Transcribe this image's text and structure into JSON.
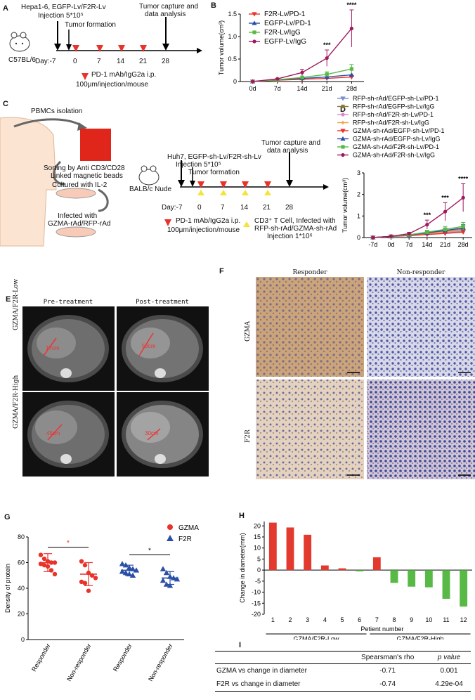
{
  "panelA": {
    "letter": "A",
    "mouse": "C57BL/6",
    "injection_l1": "Hepa1-6, EGFP-Lv/F2R-Lv",
    "injection_l2": "Injection 5*10⁵",
    "tumor_formation": "Tumor formation",
    "capture_l1": "Tumor capture and",
    "capture_l2": "data analysis",
    "day_label": "Day:-7",
    "days": [
      "0",
      "7",
      "14",
      "21",
      "28"
    ],
    "treat_l1": "PD-1 mAb/IgG2a i.p.",
    "treat_l2": "100μm/injection/mouse"
  },
  "panelC": {
    "letter": "C",
    "pbmc": "PBMCs isolation",
    "sort_l1": "Sorting by Anti CD3/CD28",
    "sort_l2": "Linked magnetic beads",
    "cultured": "Cultured with IL-2",
    "infected_l1": "Infected with",
    "infected_l2": "GZMA-rAd/RFP-rAd",
    "mouse": "BALB/c Nude",
    "injection_l1": "Huh7, EGFP-sh-Lv/F2R-sh-Lv",
    "injection_l2": "Injection 5*10⁵",
    "tumor_formation": "Tumor formation",
    "capture_l1": "Tumor capture and",
    "capture_l2": "data analysis",
    "day_label": "Day:-7",
    "days": [
      "0",
      "7",
      "14",
      "21",
      "28"
    ],
    "treat_l1": "PD-1 mAb/IgG2a i.p.",
    "treat_l2": "100μm/injection/mouse",
    "cd3_l1": "CD3⁺ T Cell, Infected with",
    "cd3_l2": "RFP-sh-rAd/GZMA-sh-rAd",
    "cd3_l3": "Injection 1*10⁶"
  },
  "panelE": {
    "letter": "E",
    "pre": "Pre-treatment",
    "post": "Post-treatment",
    "row1": "GZMA/F2R-Low",
    "row2": "GZMA/F2R-High",
    "m1": "17cm",
    "m2": "53cm",
    "m3": "45cm",
    "m4": "30cm"
  },
  "panelF": {
    "letter": "F",
    "col1": "Responder",
    "col2": "Non-responder",
    "row1": "GZMA",
    "row2": "F2R"
  },
  "panelI": {
    "letter": "I",
    "headers": [
      "",
      "Spearsman's rho",
      "p value"
    ],
    "rows": [
      [
        "GZMA vs change in diameter",
        "-0.71",
        "0.001"
      ],
      [
        "F2R vs change in diameter",
        "-0.74",
        "4.29e-04"
      ]
    ]
  },
  "chart_data": [
    {
      "panel": "B",
      "type": "line",
      "x": [
        "0d",
        "7d",
        "14d",
        "21d",
        "28d"
      ],
      "ylabel": "Tumor volume(cm³)",
      "ylim": [
        0,
        1.5
      ],
      "yticks": [
        "0",
        "0.5",
        "1.0",
        "1.5"
      ],
      "legend_position": "top-left",
      "series": [
        {
          "name": "F2R-Lv/PD-1",
          "color": "#e8322a",
          "marker": "triangle-down",
          "values": [
            0,
            0.03,
            0.05,
            0.07,
            0.1
          ]
        },
        {
          "name": "EGFP-Lv/PD-1",
          "color": "#2a4fa6",
          "marker": "triangle-up",
          "values": [
            0,
            0.04,
            0.07,
            0.1,
            0.15
          ]
        },
        {
          "name": "F2R-Lv/IgG",
          "color": "#58b947",
          "marker": "square",
          "values": [
            0,
            0.04,
            0.09,
            0.16,
            0.28
          ]
        },
        {
          "name": "EGFP-Lv/IgG",
          "color": "#a0195e",
          "marker": "circle",
          "values": [
            0,
            0.06,
            0.2,
            0.52,
            1.18
          ]
        }
      ],
      "annotations": [
        {
          "x": "21d",
          "text": "***"
        },
        {
          "x": "28d",
          "text": "****"
        }
      ]
    },
    {
      "panel": "D",
      "type": "line",
      "x": [
        "-7d",
        "0d",
        "7d",
        "14d",
        "21d",
        "28d"
      ],
      "ylabel": "Tumor volume(cm³)",
      "ylim": [
        0,
        3
      ],
      "yticks": [
        "0",
        "1",
        "2",
        "3"
      ],
      "legend_position": "top",
      "series": [
        {
          "name": "RFP-sh-rAd/EGFP-sh-Lv/PD-1",
          "color": "#7a8fc7",
          "marker": "triangle-down",
          "values": [
            0,
            0.05,
            0.1,
            0.15,
            0.22,
            0.3
          ]
        },
        {
          "name": "RFP-sh-rAd/EGFP-sh-Lv/IgG",
          "color": "#8a7a3a",
          "marker": "square",
          "values": [
            0,
            0.05,
            0.12,
            0.2,
            0.3,
            0.4
          ]
        },
        {
          "name": "RFP-sh-rAd/F2R-sh-Lv/PD-1",
          "color": "#d88ac8",
          "marker": "circle",
          "values": [
            0,
            0.05,
            0.1,
            0.16,
            0.24,
            0.33
          ]
        },
        {
          "name": "RFP-sh-rAd/F2R-sh-Lv/IgG",
          "color": "#f0a040",
          "marker": "plus",
          "values": [
            0,
            0.05,
            0.11,
            0.18,
            0.27,
            0.37
          ]
        },
        {
          "name": "GZMA-sh-rAd/EGFP-sh-Lv/PD-1",
          "color": "#e8322a",
          "marker": "triangle-down",
          "values": [
            0,
            0.05,
            0.09,
            0.14,
            0.19,
            0.25
          ]
        },
        {
          "name": "GZMA-sh-rAd/EGFP-sh-Lv/IgG",
          "color": "#2a4fa6",
          "marker": "triangle-up",
          "values": [
            0,
            0.05,
            0.12,
            0.22,
            0.33,
            0.45
          ]
        },
        {
          "name": "GZMA-sh-rAd/F2R-sh-Lv/PD-1",
          "color": "#58b947",
          "marker": "square",
          "values": [
            0,
            0.05,
            0.13,
            0.25,
            0.38,
            0.52
          ]
        },
        {
          "name": "GZMA-sh-rAd/F2R-sh-Lv/IgG",
          "color": "#a0195e",
          "marker": "circle",
          "values": [
            0,
            0.06,
            0.18,
            0.6,
            1.2,
            1.85
          ]
        }
      ],
      "annotations": [
        {
          "x": "14d",
          "text": "***"
        },
        {
          "x": "21d",
          "text": "***"
        },
        {
          "x": "28d",
          "text": "****"
        }
      ]
    },
    {
      "panel": "G",
      "type": "scatter",
      "ylabel": "Density of protein",
      "ylim": [
        0,
        80
      ],
      "yticks": [
        "0",
        "20",
        "40",
        "60",
        "80"
      ],
      "categories": [
        "Responder",
        "Non-responder",
        "Responder",
        "Non-responder"
      ],
      "legend_position": "top-right",
      "series": [
        {
          "name": "GZMA",
          "color": "#e8322a",
          "marker": "circle",
          "groups": [
            {
              "category_index": 0,
              "values": [
                66,
                63,
                61,
                60,
                60,
                59,
                58,
                57,
                54,
                51
              ],
              "mean": 60,
              "sd": 7
            },
            {
              "category_index": 1,
              "values": [
                61,
                58,
                52,
                50,
                48,
                45,
                44,
                38
              ],
              "mean": 51,
              "sd": 9
            }
          ]
        },
        {
          "name": "F2R",
          "color": "#2a4fa6",
          "marker": "triangle",
          "groups": [
            {
              "category_index": 2,
              "values": [
                59,
                58,
                56,
                55,
                54,
                53,
                52,
                51,
                50
              ],
              "mean": 54,
              "sd": 4
            },
            {
              "category_index": 3,
              "values": [
                55,
                52,
                49,
                48,
                47,
                46,
                43,
                42
              ],
              "mean": 48,
              "sd": 5
            }
          ]
        }
      ],
      "annotations": [
        {
          "between": [
            0,
            1
          ],
          "text": "*"
        },
        {
          "between": [
            2,
            3
          ],
          "text": "*"
        }
      ]
    },
    {
      "panel": "H",
      "type": "bar",
      "ylabel": "Change in diameter(mm)",
      "xlabel": "Petient number",
      "ylim": [
        -20,
        22
      ],
      "yticks": [
        "20",
        "15",
        "10",
        "5",
        "0",
        "-5",
        "-10",
        "-15",
        "-20"
      ],
      "categories": [
        "1",
        "2",
        "3",
        "4",
        "5",
        "6",
        "7",
        "8",
        "9",
        "10",
        "11",
        "12"
      ],
      "values": [
        21.5,
        19.3,
        16,
        2.1,
        0.8,
        -0.6,
        5.8,
        -5.8,
        -7.5,
        -7.8,
        -13,
        -16.5
      ],
      "colors": [
        "#e23a2f",
        "#e23a2f",
        "#e23a2f",
        "#e23a2f",
        "#e23a2f",
        "#58b947",
        "#e23a2f",
        "#58b947",
        "#58b947",
        "#58b947",
        "#58b947",
        "#58b947"
      ],
      "groups": [
        {
          "label": "GZMA/F2R-Low",
          "from": 1,
          "to": 6
        },
        {
          "label": "GZMA/F2R-High",
          "from": 7,
          "to": 12
        }
      ]
    }
  ]
}
